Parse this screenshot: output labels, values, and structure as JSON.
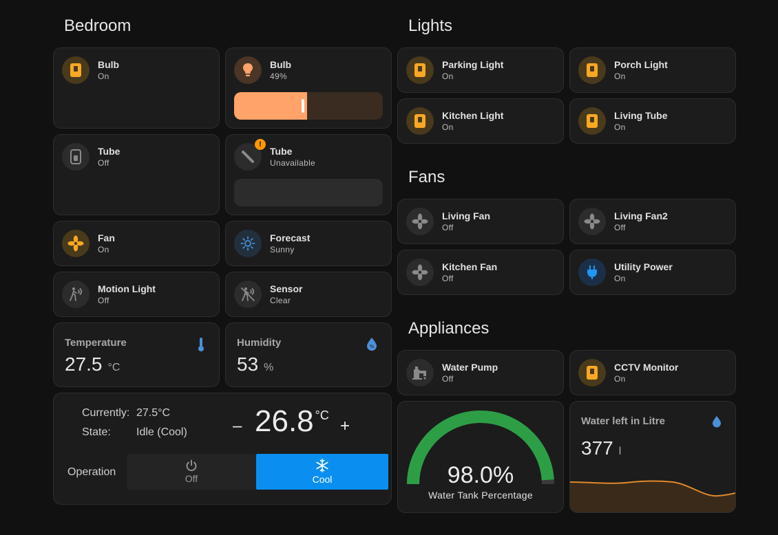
{
  "sections": {
    "bedroom": "Bedroom",
    "lights": "Lights",
    "fans": "Fans",
    "appliances": "Appliances"
  },
  "bedroom": {
    "bulb_switch": {
      "name": "Bulb",
      "state": "On",
      "icon": "switch-icon"
    },
    "bulb_dimmer": {
      "name": "Bulb",
      "state": "49%",
      "icon": "lightbulb-icon",
      "brightness": 0.49,
      "color": "#ffa36a"
    },
    "tube_switch": {
      "name": "Tube",
      "state": "Off",
      "icon": "switch-icon"
    },
    "tube_light": {
      "name": "Tube",
      "state": "Unavailable",
      "icon": "tube-light-icon",
      "badge": "!"
    },
    "fan": {
      "name": "Fan",
      "state": "On",
      "icon": "fan-icon"
    },
    "forecast": {
      "name": "Forecast",
      "state": "Sunny",
      "icon": "sun-icon"
    },
    "motion_light": {
      "name": "Motion Light",
      "state": "Off",
      "icon": "motion-sensor-icon"
    },
    "sensor": {
      "name": "Sensor",
      "state": "Clear",
      "icon": "motion-sensor-icon"
    },
    "temperature": {
      "name": "Temperature",
      "value": "27.5",
      "unit": "°C",
      "icon": "thermometer-icon"
    },
    "humidity": {
      "name": "Humidity",
      "value": "53",
      "unit": "%",
      "icon": "humidity-icon"
    },
    "thermostat": {
      "currently_label": "Currently:",
      "currently_value": "27.5°C",
      "state_label": "State:",
      "state_value": "Idle (Cool)",
      "target": "26.8",
      "target_unit": "°C",
      "minus": "–",
      "plus": "+",
      "operation_label": "Operation",
      "mode_off": "Off",
      "mode_cool": "Cool"
    }
  },
  "lights": [
    {
      "name": "Parking Light",
      "state": "On",
      "icon": "switch-icon"
    },
    {
      "name": "Porch Light",
      "state": "On",
      "icon": "switch-icon"
    },
    {
      "name": "Kitchen Light",
      "state": "On",
      "icon": "switch-icon"
    },
    {
      "name": "Living Tube",
      "state": "On",
      "icon": "switch-icon"
    }
  ],
  "fans": [
    {
      "name": "Living Fan",
      "state": "Off",
      "icon": "fan-icon"
    },
    {
      "name": "Living Fan2",
      "state": "Off",
      "icon": "fan-icon"
    },
    {
      "name": "Kitchen Fan",
      "state": "Off",
      "icon": "fan-icon"
    },
    {
      "name": "Utility Power",
      "state": "On",
      "icon": "power-plug-icon"
    }
  ],
  "appliances": {
    "water_pump": {
      "name": "Water Pump",
      "state": "Off",
      "icon": "water-pump-icon"
    },
    "cctv": {
      "name": "CCTV Monitor",
      "state": "On",
      "icon": "switch-icon"
    },
    "gauge": {
      "value": "98.0%",
      "percent": 98.0,
      "name": "Water Tank Percentage",
      "color": "#2e9e46"
    },
    "water_left": {
      "name": "Water left in Litre",
      "value": "377",
      "unit": "l",
      "icon": "water-drop-icon",
      "color": "#e0892c"
    }
  },
  "colors": {
    "accent_on": "#f9a825",
    "accent_blue": "#0a8ff0",
    "card": "#1c1c1c",
    "background": "#111111"
  }
}
